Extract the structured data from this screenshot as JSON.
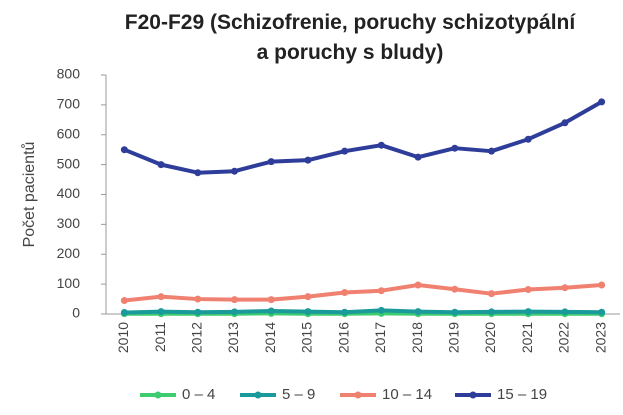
{
  "chart_data": {
    "type": "line",
    "title": "F20-F29 (Schizofrenie, poruchy schizotypální a poruchy s bludy)",
    "y_label": "Počet pacientů",
    "categories": [
      "2010",
      "2011",
      "2012",
      "2013",
      "2014",
      "2015",
      "2016",
      "2017",
      "2018",
      "2019",
      "2020",
      "2021",
      "2022",
      "2023"
    ],
    "series": [
      {
        "name": "0 – 4",
        "color": "#3dcc70",
        "values": [
          1,
          1,
          1,
          1,
          2,
          1,
          1,
          2,
          1,
          1,
          1,
          1,
          1,
          1
        ]
      },
      {
        "name": "5 – 9",
        "color": "#1a9a9a",
        "values": [
          5,
          8,
          6,
          7,
          10,
          8,
          6,
          12,
          8,
          6,
          7,
          8,
          7,
          6
        ]
      },
      {
        "name": "10 – 14",
        "color": "#f08070",
        "values": [
          45,
          58,
          50,
          48,
          48,
          58,
          72,
          78,
          97,
          83,
          68,
          82,
          88,
          97
        ]
      },
      {
        "name": "15 – 19",
        "color": "#2e3d9a",
        "values": [
          550,
          500,
          473,
          478,
          510,
          515,
          545,
          565,
          525,
          555,
          545,
          585,
          640,
          710
        ]
      }
    ],
    "ylim": [
      0,
      800
    ],
    "yticks": [
      0,
      100,
      200,
      300,
      400,
      500,
      600,
      700,
      800
    ],
    "grid": false
  }
}
